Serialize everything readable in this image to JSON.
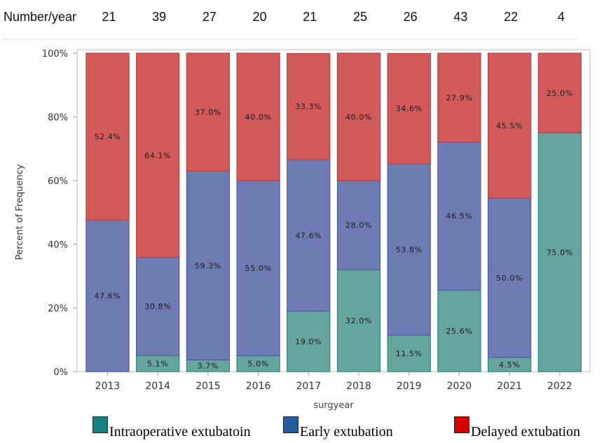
{
  "counts_row": {
    "label": "Number/year",
    "values": [
      "21",
      "39",
      "27",
      "20",
      "21",
      "25",
      "26",
      "43",
      "22",
      "4"
    ]
  },
  "chart_data": {
    "type": "bar",
    "stacked": true,
    "title": "",
    "xlabel": "surgyear",
    "ylabel": "Percent of Frequency",
    "ylim": [
      0,
      100
    ],
    "yticks": [
      "0%",
      "20%",
      "40%",
      "60%",
      "80%",
      "100%"
    ],
    "grid": false,
    "categories": [
      "2013",
      "2014",
      "2015",
      "2016",
      "2017",
      "2018",
      "2019",
      "2020",
      "2021",
      "2022"
    ],
    "series": [
      {
        "name": "Intraoperative extubatoin",
        "color": "#66a59e",
        "values": [
          0,
          5.1,
          3.7,
          5.0,
          19.0,
          32.0,
          11.5,
          25.6,
          4.5,
          75.0
        ],
        "labels": [
          "",
          "5.1%",
          "3.7%",
          "5.0%",
          "19.0%",
          "32.0%",
          "11.5%",
          "25.6%",
          "4.5%",
          "75.0%"
        ]
      },
      {
        "name": "Early extubation",
        "color": "#6d7cb2",
        "values": [
          47.6,
          30.8,
          59.3,
          55.0,
          47.6,
          28.0,
          53.8,
          46.5,
          50.0,
          0
        ],
        "labels": [
          "47.6%",
          "30.8%",
          "59.3%",
          "55.0%",
          "47.6%",
          "28.0%",
          "53.8%",
          "46.5%",
          "50.0%",
          ""
        ]
      },
      {
        "name": "Delayed extubation",
        "color": "#d25a5a",
        "values": [
          52.4,
          64.1,
          37.0,
          40.0,
          33.3,
          40.0,
          34.6,
          27.9,
          45.5,
          25.0
        ],
        "labels": [
          "52.4%",
          "64.1%",
          "37.0%",
          "40.0%",
          "33.3%",
          "40.0%",
          "34.6%",
          "27.9%",
          "45.5%",
          "25.0%"
        ]
      }
    ],
    "legend": {
      "placement": "bottom",
      "items": [
        {
          "label": "Intraoperative extubatoin",
          "swatch_color": "#148282"
        },
        {
          "label": "Early extubation",
          "swatch_color": "#245c9c"
        },
        {
          "label": "Delayed extubation",
          "swatch_color": "#d40000"
        }
      ]
    }
  }
}
